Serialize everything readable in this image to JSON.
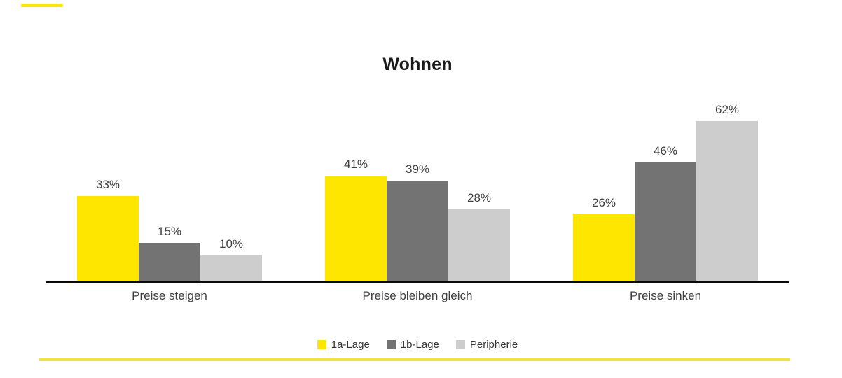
{
  "page": {
    "background": "#FFFFFF"
  },
  "chart_data": {
    "type": "bar",
    "title": "Wohnen",
    "categories": [
      "Preise steigen",
      "Preise bleiben gleich",
      "Preise sinken"
    ],
    "series": [
      {
        "name": "1a-Lage",
        "color": "#FFE600",
        "values": [
          33,
          41,
          26
        ]
      },
      {
        "name": "1b-Lage",
        "color": "#737373",
        "values": [
          15,
          39,
          46
        ]
      },
      {
        "name": "Peripherie",
        "color": "#CDCDCD",
        "values": [
          10,
          28,
          62
        ]
      }
    ],
    "value_suffix": "%",
    "data_labels": true,
    "grid": false,
    "ylim": [
      0,
      71
    ],
    "legend_position": "bottom"
  },
  "colors": {
    "accent_yellow": "#FFE600",
    "bottom_rule_yellow": "#F1E33E",
    "axis_line": "#0A0A0A",
    "label_text": "#404040",
    "title_text": "#1A1A1A"
  }
}
